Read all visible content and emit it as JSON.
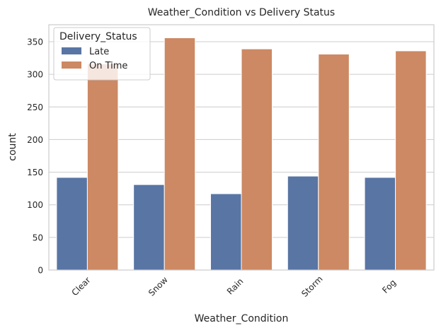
{
  "chart_data": {
    "type": "bar",
    "title": "Weather_Condition vs Delivery Status",
    "xlabel": "Weather_Condition",
    "ylabel": "count",
    "categories": [
      "Clear",
      "Snow",
      "Rain",
      "Storm",
      "Fog"
    ],
    "series": [
      {
        "name": "Late",
        "color": "#5875a4",
        "values": [
          142,
          131,
          117,
          144,
          142
        ]
      },
      {
        "name": "On Time",
        "color": "#cc8963",
        "values": [
          316,
          356,
          339,
          331,
          336
        ]
      }
    ],
    "ylim": [
      0,
      376
    ],
    "yticks": [
      0,
      50,
      100,
      150,
      200,
      250,
      300,
      350
    ],
    "grid": true,
    "legend": {
      "title": "Delivery_Status",
      "position": "top-left"
    }
  }
}
